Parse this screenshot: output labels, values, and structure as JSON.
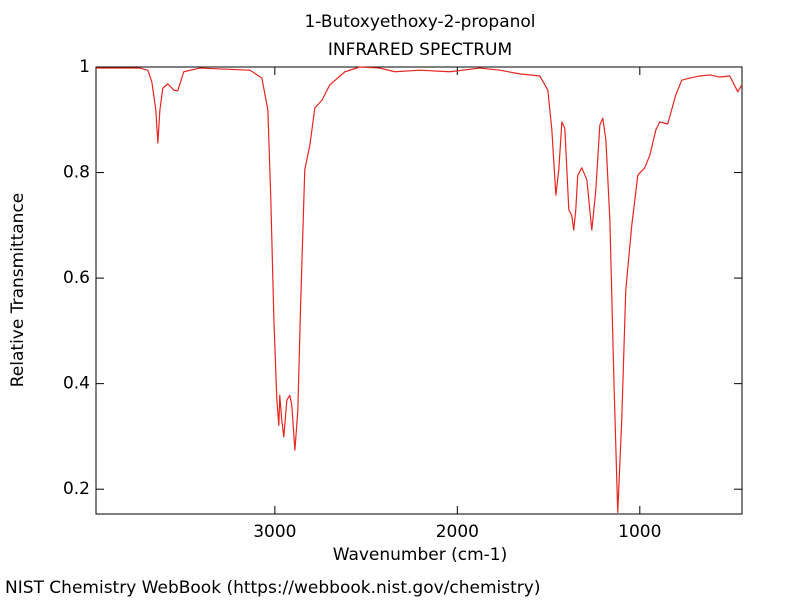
{
  "chart_data": {
    "type": "line",
    "title": "1-Butoxyethoxy-2-propanol",
    "subtitle": "INFRARED SPECTRUM",
    "x_label": "Wavenumber (cm-1)",
    "y_label": "Relative Transmittance",
    "source": "NIST Chemistry WebBook (https://webbook.nist.gov/chemistry)",
    "color": "#e8251f",
    "x": [
      3981,
      3740,
      3696,
      3674,
      3652,
      3641,
      3630,
      3614,
      3586,
      3553,
      3532,
      3499,
      3411,
      3137,
      3071,
      3038,
      3022,
      3005,
      2989,
      2978,
      2973,
      2962,
      2951,
      2934,
      2918,
      2907,
      2890,
      2874,
      2858,
      2836,
      2808,
      2781,
      2742,
      2699,
      2616,
      2534,
      2425,
      2342,
      2205,
      2041,
      1877,
      1767,
      1658,
      1548,
      1504,
      1482,
      1460,
      1444,
      1427,
      1411,
      1389,
      1373,
      1362,
      1351,
      1340,
      1318,
      1290,
      1263,
      1241,
      1219,
      1203,
      1186,
      1164,
      1142,
      1121,
      1099,
      1077,
      1044,
      1011,
      973,
      945,
      912,
      890,
      847,
      803,
      770,
      726,
      671,
      616,
      562,
      507,
      463,
      441
    ],
    "values": [
      0.998,
      0.998,
      0.994,
      0.972,
      0.918,
      0.856,
      0.918,
      0.96,
      0.968,
      0.956,
      0.955,
      0.991,
      0.998,
      0.994,
      0.979,
      0.918,
      0.748,
      0.52,
      0.369,
      0.321,
      0.378,
      0.331,
      0.299,
      0.369,
      0.378,
      0.359,
      0.274,
      0.35,
      0.558,
      0.805,
      0.852,
      0.922,
      0.937,
      0.966,
      0.991,
      1.0,
      0.998,
      0.991,
      0.994,
      0.991,
      0.998,
      0.994,
      0.987,
      0.983,
      0.956,
      0.881,
      0.757,
      0.805,
      0.896,
      0.884,
      0.729,
      0.719,
      0.691,
      0.729,
      0.795,
      0.809,
      0.786,
      0.691,
      0.767,
      0.89,
      0.903,
      0.862,
      0.71,
      0.407,
      0.156,
      0.331,
      0.577,
      0.7,
      0.795,
      0.809,
      0.833,
      0.881,
      0.896,
      0.892,
      0.947,
      0.975,
      0.979,
      0.983,
      0.985,
      0.981,
      0.983,
      0.953,
      0.966
    ],
    "xlim": [
      3980,
      440
    ],
    "ylim": [
      0.153,
      1.0
    ],
    "xticks": [
      3000,
      2000,
      1000
    ],
    "yticks": [
      0.2,
      0.4,
      0.6,
      0.8,
      1
    ],
    "grid": false
  }
}
